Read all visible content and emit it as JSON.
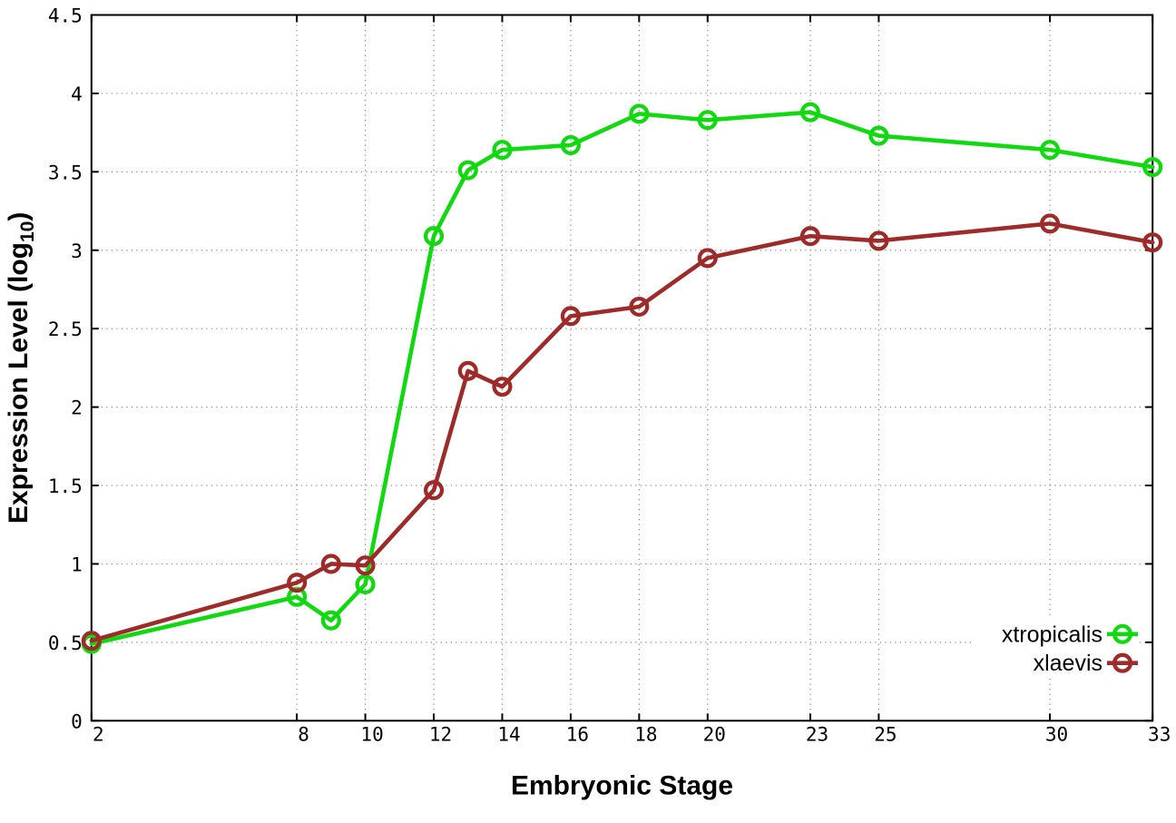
{
  "chart_data": {
    "type": "line",
    "title": "",
    "xlabel": "Embryonic Stage",
    "ylabel": {
      "main": "Expression Level (log",
      "subscript": "10",
      "suffix": ")"
    },
    "x": [
      2,
      8,
      9,
      10,
      12,
      13,
      14,
      16,
      18,
      20,
      23,
      25,
      30,
      33
    ],
    "xtick_labels": [
      "2",
      "8",
      "10",
      "12",
      "14",
      "16",
      "18",
      "20",
      "23",
      "25",
      "30",
      "33"
    ],
    "xticks": [
      2,
      8,
      10,
      12,
      14,
      16,
      18,
      20,
      23,
      25,
      30,
      33
    ],
    "ytick_labels": [
      "0",
      "0.5",
      "1",
      "1.5",
      "2",
      "2.5",
      "3",
      "3.5",
      "4",
      "4.5"
    ],
    "yticks": [
      0,
      0.5,
      1,
      1.5,
      2,
      2.5,
      3,
      3.5,
      4,
      4.5
    ],
    "xlim": [
      2,
      33
    ],
    "ylim": [
      0,
      4.5
    ],
    "grid": true,
    "grid_style": "dotted",
    "grid_color": "#8a8a8a",
    "border_color": "#000000",
    "background_color": "#ffffff",
    "legend_position": "bottom-right",
    "marker": "open-circle",
    "series": [
      {
        "name": "xtropicalis",
        "color": "#10d910",
        "values": [
          0.49,
          0.79,
          0.64,
          0.87,
          3.09,
          3.51,
          3.64,
          3.67,
          3.87,
          3.83,
          3.88,
          3.73,
          3.64,
          3.53
        ]
      },
      {
        "name": "xlaevis",
        "color": "#9e2a2a",
        "values": [
          0.51,
          0.88,
          1.0,
          0.99,
          1.47,
          2.23,
          2.13,
          2.58,
          2.64,
          2.95,
          3.09,
          3.06,
          3.17,
          3.05
        ]
      }
    ]
  }
}
